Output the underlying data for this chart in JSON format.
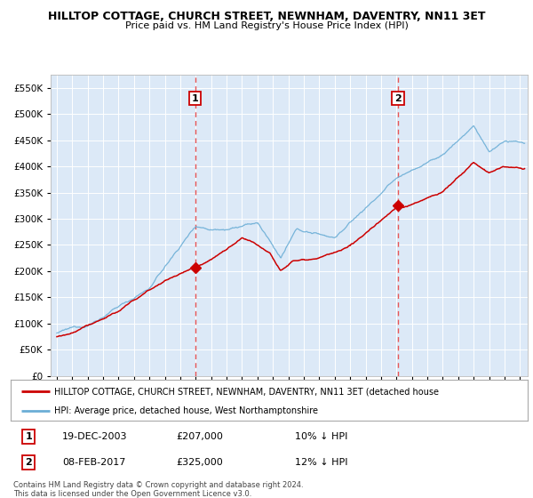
{
  "title": "HILLTOP COTTAGE, CHURCH STREET, NEWNHAM, DAVENTRY, NN11 3ET",
  "subtitle": "Price paid vs. HM Land Registry's House Price Index (HPI)",
  "legend_line1": "HILLTOP COTTAGE, CHURCH STREET, NEWNHAM, DAVENTRY, NN11 3ET (detached house",
  "legend_line2": "HPI: Average price, detached house, West Northamptonshire",
  "footer": "Contains HM Land Registry data © Crown copyright and database right 2024.\nThis data is licensed under the Open Government Licence v3.0.",
  "annotation1": {
    "label": "1",
    "date": "19-DEC-2003",
    "price": 207000,
    "note": "10% ↓ HPI"
  },
  "annotation2": {
    "label": "2",
    "date": "08-FEB-2017",
    "price": 325000,
    "note": "12% ↓ HPI"
  },
  "hpi_color": "#6baed6",
  "price_color": "#cc0000",
  "vline_color": "#e85555",
  "ylim": [
    0,
    575000
  ],
  "yticks": [
    0,
    50000,
    100000,
    150000,
    200000,
    250000,
    300000,
    350000,
    400000,
    450000,
    500000,
    550000
  ],
  "plot_bg": "#dce9f7",
  "sale1_x": 2003.97,
  "sale1_y": 207000,
  "sale2_x": 2017.1,
  "sale2_y": 325000,
  "xlim_left": 1994.6,
  "xlim_right": 2025.5
}
